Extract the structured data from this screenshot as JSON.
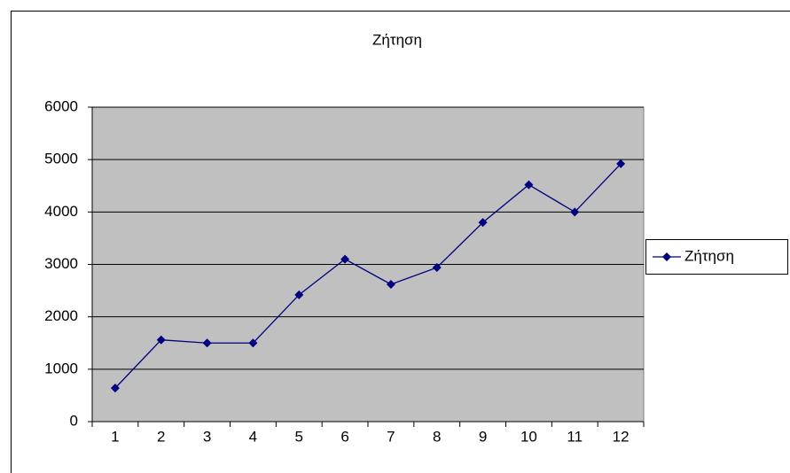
{
  "chart_data": {
    "type": "line",
    "title": "Ζήτηση",
    "categories": [
      "1",
      "2",
      "3",
      "4",
      "5",
      "6",
      "7",
      "8",
      "9",
      "10",
      "11",
      "12"
    ],
    "series": [
      {
        "name": "Ζήτηση",
        "color": "#000080",
        "values": [
          640,
          1560,
          1500,
          1500,
          2420,
          3100,
          2620,
          2940,
          3800,
          4520,
          4000,
          4920
        ]
      }
    ],
    "ylim": [
      0,
      6000
    ],
    "yticks": [
      0,
      1000,
      2000,
      3000,
      4000,
      5000,
      6000
    ],
    "grid": true,
    "legend": "right",
    "plot_background": "#c0c0c0"
  }
}
